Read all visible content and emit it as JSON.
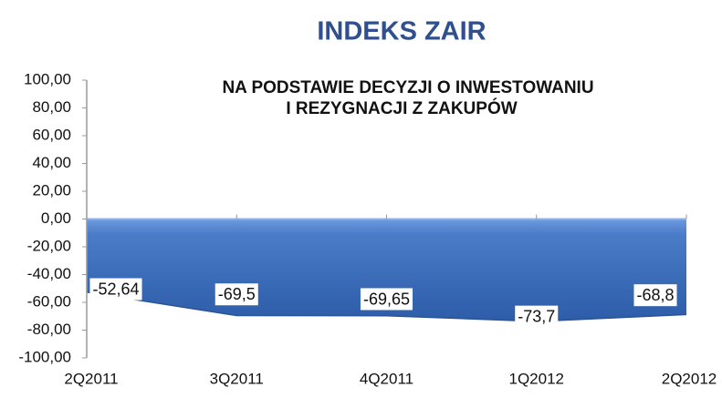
{
  "chart_data": {
    "type": "area",
    "title": "INDEKS ZAIR",
    "subtitle": [
      "NA PODSTAWIE DECYZJI O INWESTOWANIU",
      "I REZYGNACJI  Z ZAKUPÓW"
    ],
    "categories": [
      "2Q2011",
      "3Q2011",
      "4Q2011",
      "1Q2012",
      "2Q2012"
    ],
    "values": [
      -52.64,
      -69.5,
      -69.65,
      -73.7,
      -68.8
    ],
    "value_labels": [
      "-52,64",
      "-69,5",
      "-69,65",
      "-73,7",
      "-68,8"
    ],
    "color": "#3f72c0",
    "ylim": [
      -100,
      100
    ],
    "yticks": [
      {
        "value": -100,
        "label": "-100,00"
      },
      {
        "value": -80,
        "label": "-80,00"
      },
      {
        "value": -60,
        "label": "-60,00"
      },
      {
        "value": -40,
        "label": "-40,00"
      },
      {
        "value": -20,
        "label": "-20,00"
      },
      {
        "value": 0,
        "label": "0,00"
      },
      {
        "value": 20,
        "label": "20,00"
      },
      {
        "value": 40,
        "label": "40,00"
      },
      {
        "value": 60,
        "label": "60,00"
      },
      {
        "value": 80,
        "label": "80,00"
      },
      {
        "value": 100,
        "label": "100,00"
      }
    ]
  }
}
